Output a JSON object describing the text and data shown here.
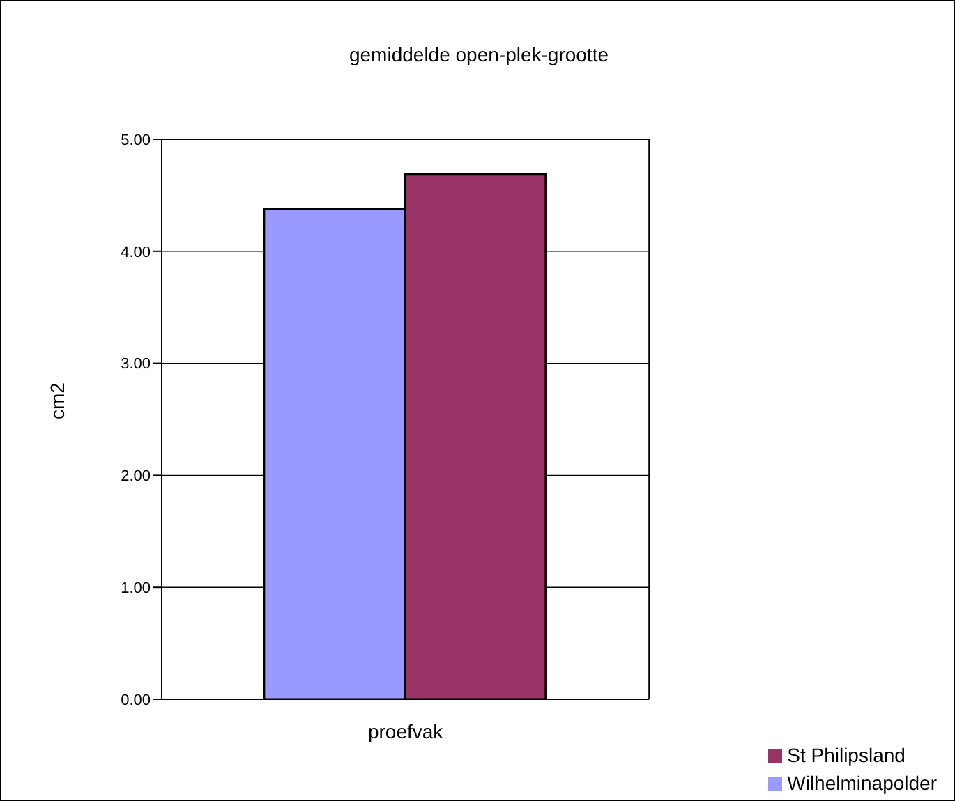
{
  "chart_data": {
    "type": "bar",
    "title": "gemiddelde open-plek-grootte",
    "ylabel": "cm2",
    "categories": [
      "proefvak"
    ],
    "series": [
      {
        "name": "Wilhelminapolder",
        "color": "#9999ff",
        "values": [
          4.38
        ]
      },
      {
        "name": "St Philipsland",
        "color": "#993366",
        "values": [
          4.69
        ]
      }
    ],
    "ylim": [
      0,
      5
    ],
    "yticks": [
      {
        "value": 0,
        "label": "0.00"
      },
      {
        "value": 1,
        "label": "1.00"
      },
      {
        "value": 2,
        "label": "2.00"
      },
      {
        "value": 3,
        "label": "3.00"
      },
      {
        "value": 4,
        "label": "4.00"
      },
      {
        "value": 5,
        "label": "5.00"
      }
    ],
    "grid": "y",
    "legend": "bottom right"
  }
}
